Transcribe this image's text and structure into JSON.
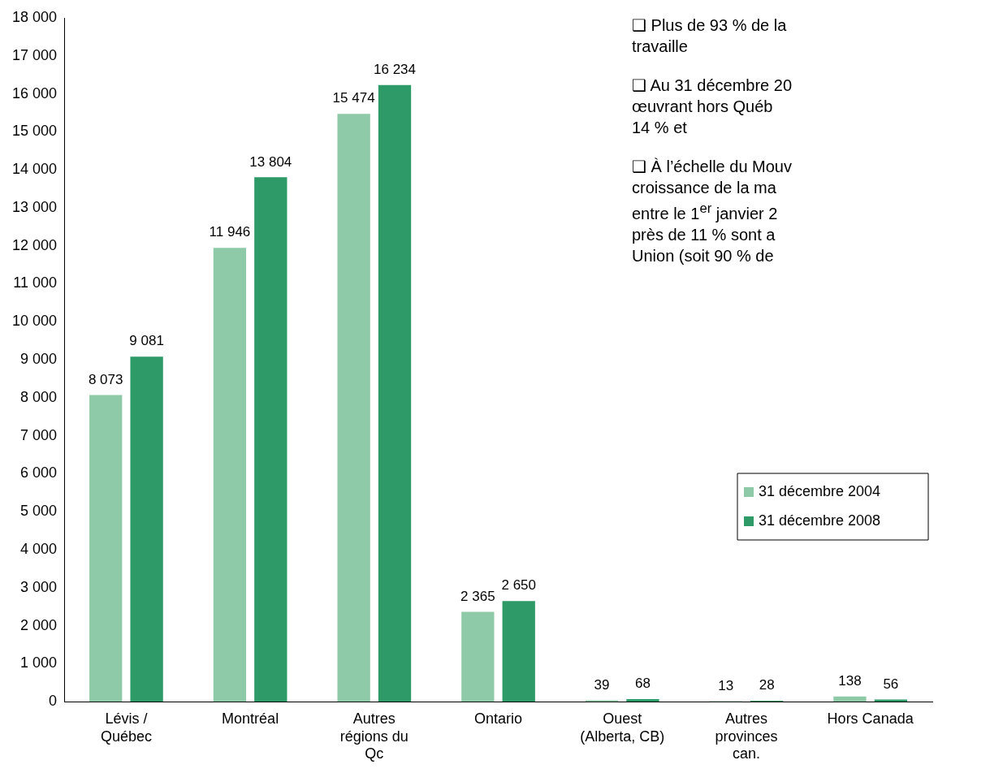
{
  "chart_data": {
    "type": "bar",
    "categories": [
      "Lévis /\nQuébec",
      "Montréal",
      "Autres\nrégions du\nQc",
      "Ontario",
      "Ouest\n(Alberta, CB)",
      "Autres\nprovinces\ncan.",
      "Hors Canada"
    ],
    "series": [
      {
        "name": "31 décembre 2004",
        "color": "#8fcaa8",
        "values": [
          8073,
          11946,
          15474,
          2365,
          39,
          13,
          138
        ],
        "value_labels": [
          "8 073",
          "11 946",
          "15 474",
          "2 365",
          "39",
          "13",
          "138"
        ]
      },
      {
        "name": "31 décembre 2008",
        "color": "#2e9a68",
        "values": [
          9081,
          13804,
          16234,
          2650,
          68,
          28,
          56
        ],
        "value_labels": [
          "9 081",
          "13 804",
          "16 234",
          "2 650",
          "68",
          "28",
          "56"
        ]
      }
    ],
    "ylim": [
      0,
      18000
    ],
    "yticks": [
      {
        "value": 0,
        "label": "0"
      },
      {
        "value": 1000,
        "label": "1 000"
      },
      {
        "value": 2000,
        "label": "2 000"
      },
      {
        "value": 3000,
        "label": "3 000"
      },
      {
        "value": 4000,
        "label": "4 000"
      },
      {
        "value": 5000,
        "label": "5 000"
      },
      {
        "value": 6000,
        "label": "6 000"
      },
      {
        "value": 7000,
        "label": "7 000"
      },
      {
        "value": 8000,
        "label": "8 000"
      },
      {
        "value": 9000,
        "label": "9 000"
      },
      {
        "value": 10000,
        "label": "10 000"
      },
      {
        "value": 11000,
        "label": "11 000"
      },
      {
        "value": 12000,
        "label": "12 000"
      },
      {
        "value": 13000,
        "label": "13 000"
      },
      {
        "value": 14000,
        "label": "14 000"
      },
      {
        "value": 15000,
        "label": "15 000"
      },
      {
        "value": 16000,
        "label": "16 000"
      },
      {
        "value": 17000,
        "label": "17 000"
      },
      {
        "value": 18000,
        "label": "18 000"
      }
    ],
    "grid": false,
    "legend": "right",
    "annotations": [
      "❑ Plus de 93 % de la\ntravaille",
      "❑ Au 31 décembre 20\nœuvrant hors Québ\n14 % et",
      "❑ À l’échelle du Mouv\ncroissance de la ma\nentre le 1$^{er}$ janvier 2\nprès de 11 % sont a\nUnion (soit 90 % de"
    ]
  }
}
